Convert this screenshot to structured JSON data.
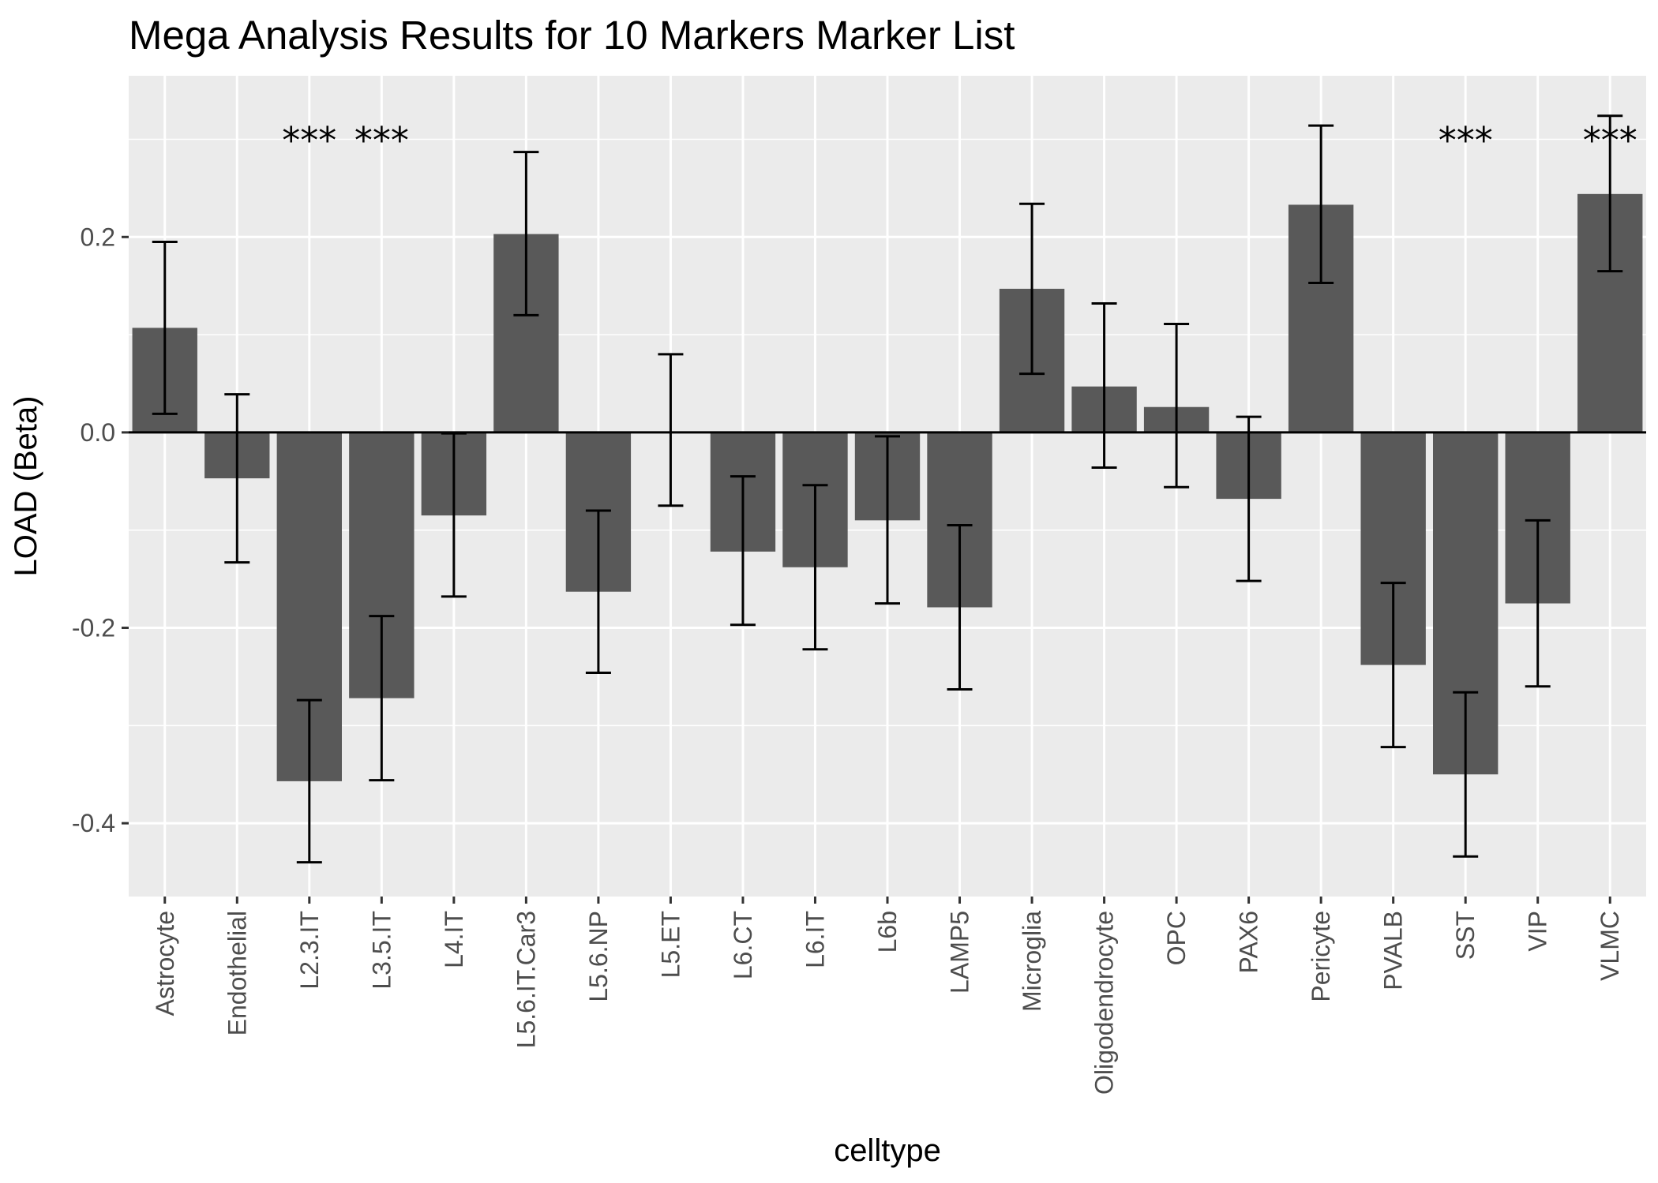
{
  "chart_data": {
    "type": "bar",
    "title": "Mega Analysis Results for 10 Markers Marker List",
    "xlabel": "celltype",
    "ylabel": "LOAD (Beta)",
    "ylim": [
      -0.475,
      0.365
    ],
    "yticks": [
      -0.4,
      -0.2,
      0.0,
      0.2
    ],
    "ytick_labels": [
      "-0.4",
      "-0.2",
      "0.0",
      "0.2"
    ],
    "grid": true,
    "categories": [
      "Astrocyte",
      "Endothelial",
      "L2.3.IT",
      "L3.5.IT",
      "L4.IT",
      "L5.6.IT.Car3",
      "L5.6.NP",
      "L5.ET",
      "L6.CT",
      "L6.IT",
      "L6b",
      "LAMP5",
      "Microglia",
      "Oligodendrocyte",
      "OPC",
      "PAX6",
      "Pericyte",
      "PVALB",
      "SST",
      "VIP",
      "VLMC"
    ],
    "values": [
      0.107,
      -0.047,
      -0.357,
      -0.272,
      -0.085,
      0.203,
      -0.163,
      0.0,
      -0.122,
      -0.138,
      -0.09,
      -0.179,
      0.147,
      0.047,
      0.026,
      -0.068,
      0.233,
      -0.238,
      -0.35,
      -0.175,
      0.244
    ],
    "error_low": [
      0.019,
      -0.133,
      -0.44,
      -0.356,
      -0.168,
      0.12,
      -0.246,
      -0.075,
      -0.197,
      -0.222,
      -0.175,
      -0.263,
      0.06,
      -0.036,
      -0.056,
      -0.152,
      0.153,
      -0.322,
      -0.434,
      -0.26,
      0.165
    ],
    "error_high": [
      0.195,
      0.039,
      -0.274,
      -0.188,
      -0.001,
      0.287,
      -0.08,
      0.08,
      -0.045,
      -0.054,
      -0.004,
      -0.095,
      0.234,
      0.132,
      0.111,
      0.016,
      0.314,
      -0.154,
      -0.266,
      -0.09,
      0.324
    ],
    "significance": [
      "",
      "",
      "***",
      "***",
      "",
      "",
      "",
      "",
      "",
      "",
      "",
      "",
      "",
      "",
      "",
      "",
      "",
      "",
      "***",
      "",
      "***"
    ],
    "colors": {
      "panel": "#ebebeb",
      "grid": "#ffffff",
      "bar": "#595959",
      "error_bar": "#000000",
      "zero_line": "#000000"
    }
  }
}
